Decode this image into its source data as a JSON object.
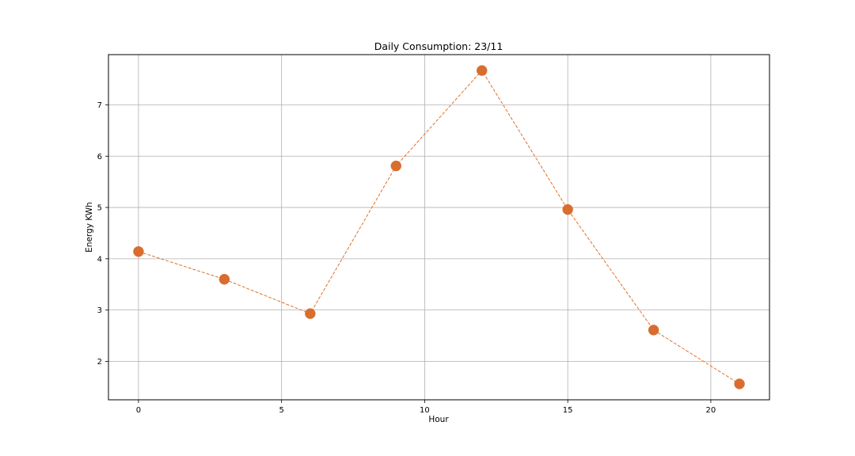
{
  "chart_data": {
    "type": "line",
    "title": "Daily Consumption: 23/11",
    "xlabel": "Hour",
    "ylabel": "Energy KWh",
    "x": [
      0,
      3,
      6,
      9,
      12,
      15,
      18,
      21
    ],
    "series": [
      {
        "values": [
          4.14,
          3.6,
          2.93,
          5.81,
          7.67,
          4.96,
          2.61,
          1.56
        ],
        "color": "#e0702a",
        "marker_color": "#d96d2e",
        "line_style": "dashed",
        "marker": "circle"
      }
    ],
    "xlim": [
      -1.05,
      22.05
    ],
    "ylim": [
      1.25,
      7.98
    ],
    "xticks": [
      0,
      5,
      10,
      15,
      20
    ],
    "yticks": [
      2,
      3,
      4,
      5,
      6,
      7
    ],
    "grid": true,
    "legend": "none"
  }
}
